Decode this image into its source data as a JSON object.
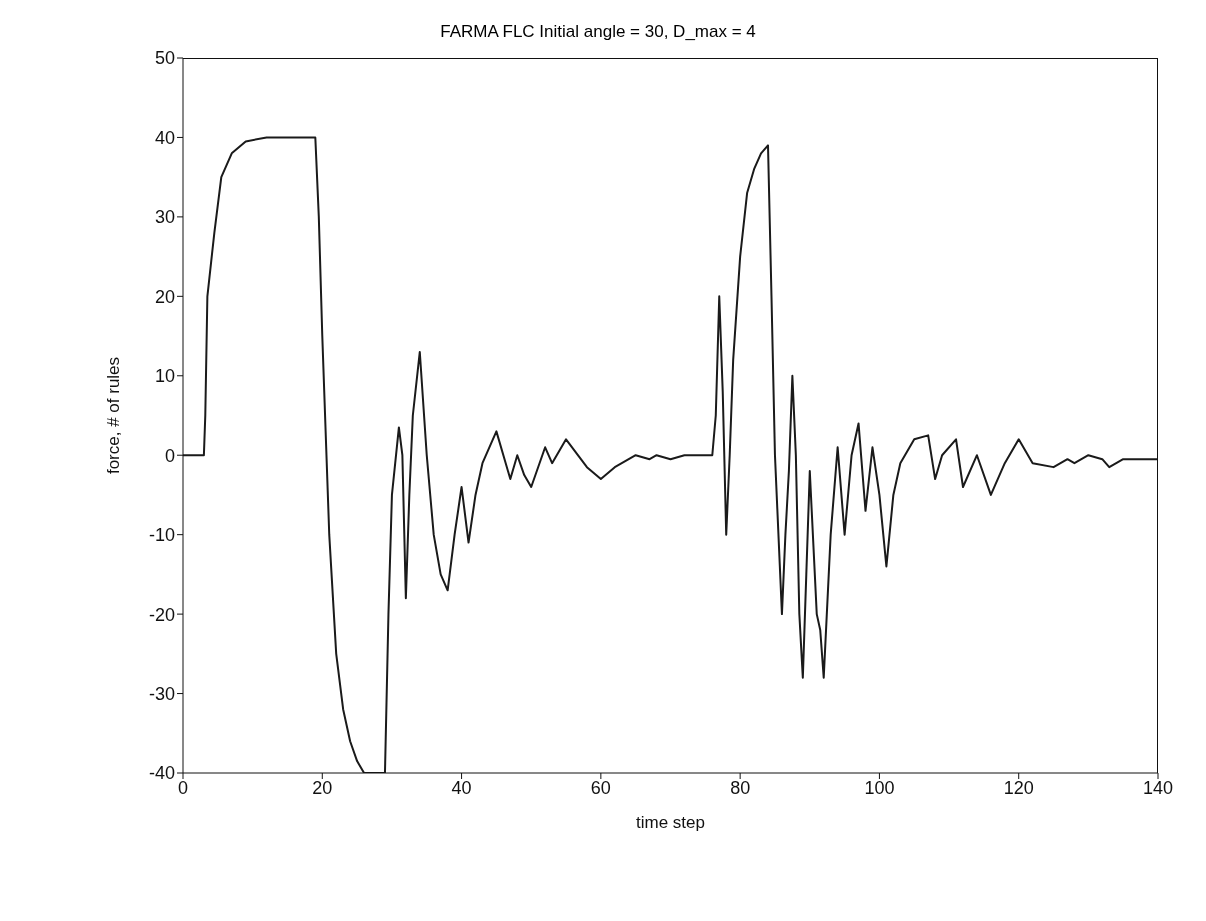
{
  "chart_data": {
    "type": "line",
    "title": "FARMA FLC  Initial angle = 30, D_max = 4",
    "xlabel": "time step",
    "ylabel": "force,    # of rules",
    "x": [
      0,
      3,
      3.2,
      3.5,
      4.5,
      5.5,
      7,
      9,
      12,
      19,
      19.5,
      20,
      21,
      22,
      23,
      24,
      25,
      26,
      29,
      29.5,
      30,
      31,
      31.5,
      32,
      32.5,
      33,
      34,
      35,
      36,
      37,
      38,
      39,
      40,
      41,
      42,
      43,
      45,
      47,
      48,
      49,
      50,
      52,
      53,
      55,
      58,
      60,
      62,
      65,
      67,
      68,
      70,
      72,
      76,
      76.5,
      77,
      77.5,
      78,
      78.5,
      79,
      80,
      81,
      82,
      83,
      84,
      84.5,
      85,
      86,
      86.5,
      87,
      87.5,
      88,
      88.5,
      89,
      89.5,
      90,
      91,
      91.5,
      92,
      93,
      94,
      95,
      96,
      97,
      98,
      99,
      100,
      101,
      102,
      103,
      105,
      107,
      108,
      109,
      111,
      112,
      114,
      116,
      118,
      120,
      122,
      125,
      126,
      127,
      128,
      130,
      132,
      133,
      135,
      140
    ],
    "series": [
      {
        "color": "#1a1a1a",
        "values": [
          0,
          0,
          5,
          20,
          28,
          35,
          38,
          39.5,
          40,
          40,
          30,
          15,
          -10,
          -25,
          -32,
          -36,
          -38.5,
          -40,
          -40,
          -20,
          -5,
          3.5,
          0,
          -18,
          -5,
          5,
          13,
          0,
          -10,
          -15,
          -17,
          -10,
          -4,
          -11,
          -5,
          -1,
          3,
          -3,
          0,
          -2.5,
          -4,
          1,
          -1,
          2,
          -1.5,
          -3,
          -1.5,
          0,
          -0.5,
          0,
          -0.5,
          0,
          0,
          5,
          20,
          8,
          -10,
          0,
          12,
          25,
          33,
          36,
          38,
          39,
          20,
          0,
          -20,
          -10,
          -2,
          10,
          0,
          -20,
          -28,
          -15,
          -2,
          -20,
          -22,
          -28,
          -10,
          1,
          -10,
          0,
          4,
          -7,
          1,
          -5,
          -14,
          -5,
          -1,
          2,
          2.5,
          -3,
          0,
          2,
          -4,
          0,
          -5,
          -1,
          2,
          -1,
          -1.5,
          -1,
          -0.5,
          -1,
          0,
          -0.5,
          -1.5,
          -0.5,
          -0.5
        ]
      }
    ],
    "xlim": [
      0,
      140
    ],
    "xticks": [
      0,
      20,
      40,
      60,
      80,
      100,
      120,
      140
    ],
    "ylim": [
      -40,
      50
    ],
    "yticks": [
      -40,
      -30,
      -20,
      -10,
      0,
      10,
      20,
      30,
      40,
      50
    ],
    "grid": false,
    "legend": false,
    "marker": "none",
    "line_style": "solid"
  }
}
